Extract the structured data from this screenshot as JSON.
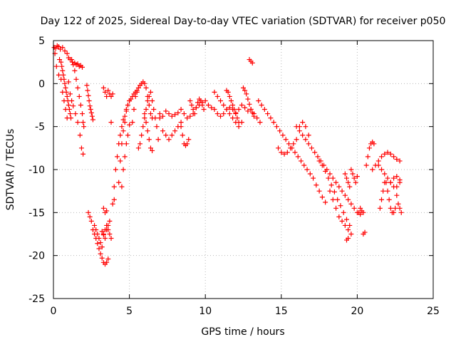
{
  "chart_data": {
    "type": "scatter",
    "title": "Day 122 of 2025, Sidereal Day-to-day VTEC variation (SDTVAR) for receiver p050",
    "xlabel": "GPS time / hours",
    "ylabel": "SDTVAR / TECUs",
    "xlim": [
      0,
      25
    ],
    "ylim": [
      -25,
      5
    ],
    "xticks": [
      "0",
      "5",
      "10",
      "15",
      "20",
      "25"
    ],
    "yticks": [
      "5",
      "0",
      "-5",
      "-10",
      "-15",
      "-20",
      "-25"
    ],
    "grid": true,
    "marker": "+",
    "series": [
      {
        "name": "SDTVAR",
        "color": "#ff0000",
        "x": [
          0.05,
          0.15,
          0.25,
          0.35,
          0.45,
          0.6,
          0.75,
          0.9,
          1.0,
          1.1,
          1.25,
          1.4,
          1.5,
          1.6,
          1.7,
          1.8,
          1.9,
          0.1,
          0.2,
          0.35,
          0.5,
          0.6,
          0.7,
          0.8,
          0.9,
          1.0,
          1.1,
          1.2,
          1.3,
          1.45,
          1.6,
          1.75,
          1.85,
          1.95,
          0.4,
          0.5,
          0.55,
          0.6,
          0.65,
          0.7,
          0.75,
          0.8,
          0.85,
          0.9,
          0.95,
          1.0,
          1.05,
          1.1,
          1.15,
          1.2,
          1.3,
          1.4,
          1.5,
          1.6,
          1.7,
          1.8,
          1.9,
          1.95,
          2.0,
          2.2,
          2.25,
          2.3,
          2.35,
          2.4,
          2.45,
          2.5,
          2.55,
          2.6,
          2.3,
          2.4,
          2.5,
          2.6,
          2.7,
          2.8,
          2.9,
          3.0,
          3.1,
          3.2,
          3.3,
          3.4,
          3.5,
          3.6,
          2.7,
          2.8,
          2.9,
          3.0,
          3.1,
          3.2,
          3.3,
          3.4,
          3.5,
          3.6,
          3.7,
          3.8,
          3.3,
          3.4,
          3.5,
          3.6,
          3.7,
          3.8,
          3.9,
          3.9,
          4.0,
          4.1,
          4.2,
          4.3,
          4.4,
          4.5,
          4.6,
          4.7,
          4.8,
          4.9,
          5.0,
          4.3,
          4.4,
          4.5,
          4.6,
          4.7,
          4.8,
          4.9,
          5.0,
          5.1,
          5.2,
          5.3,
          5.4,
          5.5,
          3.2,
          3.3,
          3.4,
          3.5,
          3.6,
          3.7,
          3.3,
          3.4,
          3.5,
          3.8,
          4.0,
          4.5,
          4.6,
          4.7,
          4.8,
          4.9,
          5.0,
          5.2,
          5.3,
          5.4,
          5.5,
          5.6,
          5.7,
          5.8,
          5.9,
          6.0,
          6.1,
          6.2,
          6.3,
          6.4,
          6.5,
          5.6,
          5.7,
          5.8,
          5.9,
          6.0,
          6.1,
          6.2,
          6.3,
          6.4,
          6.5,
          6.6,
          6.7,
          6.8,
          6.9,
          7.0,
          6.0,
          6.1,
          6.2,
          6.3,
          6.4,
          6.5,
          7.0,
          7.2,
          7.4,
          7.6,
          7.8,
          8.0,
          8.2,
          8.4,
          8.6,
          8.8,
          9.0,
          9.2,
          9.4,
          9.6,
          9.8,
          10.0,
          10.2,
          10.4,
          10.6,
          10.8,
          11.0,
          11.2,
          11.4,
          11.6,
          11.8,
          12.0,
          12.2,
          12.4,
          12.6,
          12.8,
          13.0,
          13.2,
          13.4,
          13.6,
          7.2,
          7.4,
          7.6,
          7.8,
          8.0,
          8.2,
          8.4,
          8.4,
          8.5,
          8.6,
          8.7,
          8.8,
          8.9,
          9.0,
          9.1,
          9.2,
          9.3,
          9.4,
          9.5,
          9.6,
          9.7,
          9.8,
          9.9,
          10.6,
          10.8,
          11.0,
          11.2,
          11.4,
          11.6,
          11.8,
          12.0,
          12.2,
          12.4,
          11.4,
          11.5,
          11.6,
          11.7,
          11.8,
          11.9,
          12.0,
          12.1,
          12.2,
          12.5,
          12.6,
          12.7,
          12.8,
          12.9,
          13.0,
          13.1,
          13.2,
          12.9,
          13.0,
          13.1,
          13.5,
          13.7,
          13.9,
          14.1,
          14.3,
          14.5,
          14.7,
          14.9,
          15.1,
          15.3,
          15.5,
          15.7,
          15.9,
          16.1,
          16.3,
          16.5,
          16.7,
          16.9,
          17.1,
          17.3,
          17.5,
          17.7,
          17.9,
          14.8,
          15.0,
          15.2,
          15.4,
          15.6,
          15.8,
          16.0,
          16.2,
          16.4,
          16.6,
          16.8,
          16.0,
          16.2,
          16.4,
          16.6,
          16.8,
          17.0,
          17.2,
          17.4,
          17.6,
          17.8,
          18.0,
          18.2,
          18.4,
          18.6,
          18.8,
          19.0,
          19.2,
          19.4,
          19.6,
          19.8,
          20.0,
          20.2,
          17.5,
          17.7,
          17.9,
          18.1,
          18.3,
          18.5,
          18.7,
          18.9,
          19.1,
          19.3,
          19.5,
          18.2,
          18.4,
          18.6,
          18.8,
          19.0,
          19.2,
          19.4,
          19.6,
          19.2,
          19.3,
          19.4,
          19.5,
          19.6,
          19.7,
          19.8,
          19.9,
          20.0,
          20.1,
          20.2,
          20.3,
          20.4,
          20.4,
          20.5,
          19.3,
          19.4,
          20.6,
          20.7,
          20.8,
          20.9,
          21.0,
          21.1,
          21.0,
          21.2,
          21.4,
          21.6,
          21.8,
          22.0,
          22.2,
          22.4,
          22.6,
          22.8,
          21.4,
          21.6,
          21.8,
          22.0,
          22.2,
          22.4,
          22.6,
          22.8,
          21.9,
          22.0,
          22.1,
          22.2,
          22.3,
          22.4,
          22.5,
          22.6,
          22.7,
          22.8,
          22.9,
          21.5,
          21.6,
          21.7,
          21.8,
          22.2,
          22.4,
          22.6,
          22.8
        ],
        "y": [
          4.2,
          4.1,
          4.4,
          4.3,
          4.0,
          4.2,
          3.8,
          3.5,
          3.0,
          2.8,
          2.5,
          2.4,
          2.2,
          2.3,
          2.0,
          2.1,
          1.9,
          3.5,
          2.0,
          1.0,
          0.5,
          -1.0,
          -2.0,
          -3.0,
          -4.0,
          0.2,
          -1.2,
          -2.0,
          -2.6,
          -3.5,
          -4.5,
          -6.0,
          -7.5,
          -8.2,
          2.8,
          2.5,
          2.0,
          1.5,
          1.0,
          0.5,
          0.0,
          -0.5,
          -1.0,
          -1.5,
          -2.0,
          -2.5,
          -3.0,
          -3.5,
          -4.0,
          2.8,
          2.2,
          1.5,
          0.5,
          -0.5,
          -1.5,
          -2.5,
          -3.5,
          -4.5,
          -5.0,
          -0.2,
          -0.8,
          -1.4,
          -2.0,
          -2.6,
          -3.0,
          -3.4,
          -3.8,
          -4.2,
          -15.0,
          -15.5,
          -16.0,
          -17.0,
          -17.5,
          -18.0,
          -18.6,
          -19.2,
          -19.8,
          -20.3,
          -20.8,
          -21.0,
          -20.8,
          -20.4,
          -16.5,
          -17.0,
          -17.5,
          -18.0,
          -18.5,
          -19.0,
          -17.5,
          -17.0,
          -16.5,
          -17.0,
          -17.5,
          -18.0,
          -0.5,
          -1.0,
          -1.5,
          -0.8,
          -1.2,
          -1.5,
          -1.2,
          -14.0,
          -12.0,
          -10.0,
          -8.5,
          -7.0,
          -6.0,
          -5.0,
          -4.2,
          -3.8,
          -3.0,
          -2.5,
          -2.0,
          -11.5,
          -9.0,
          -7.0,
          -5.5,
          -4.5,
          -3.2,
          -2.5,
          -2.0,
          -1.8,
          -1.5,
          -1.2,
          -1.0,
          -0.8,
          -17.2,
          -17.6,
          -18.0,
          -17.0,
          -16.5,
          -16.0,
          -14.5,
          -15.0,
          -14.8,
          -4.5,
          -13.5,
          -12.0,
          -10.0,
          -8.5,
          -7.0,
          -6.0,
          -4.8,
          -4.5,
          -3.0,
          -1.5,
          -1.0,
          -0.5,
          -0.2,
          0.0,
          0.2,
          0.0,
          -0.5,
          -1.5,
          -2.5,
          -3.5,
          -4.0,
          -7.5,
          -7.0,
          -6.0,
          -5.0,
          -4.0,
          -3.0,
          -2.0,
          -1.5,
          -1.0,
          -2.0,
          -3.0,
          -4.0,
          -5.0,
          -6.5,
          -4.0,
          -3.5,
          -4.5,
          -5.5,
          -6.5,
          -7.5,
          -7.8,
          -3.5,
          -3.8,
          -3.2,
          -3.5,
          -3.8,
          -3.6,
          -3.4,
          -3.0,
          -3.5,
          -4.0,
          -3.8,
          -3.5,
          -2.8,
          -2.5,
          -2.2,
          -2.0,
          -2.5,
          -2.8,
          -3.0,
          -3.5,
          -3.8,
          -3.5,
          -3.0,
          -2.8,
          -3.0,
          -3.4,
          -3.0,
          -2.5,
          -2.8,
          -3.2,
          -3.0,
          -3.5,
          -4.0,
          -4.5,
          -5.5,
          -6.0,
          -6.5,
          -6.0,
          -5.5,
          -5.0,
          -4.5,
          -5.0,
          -6.0,
          -7.0,
          -7.2,
          -7.0,
          -6.5,
          -2.0,
          -2.5,
          -3.0,
          -3.5,
          -2.8,
          -2.2,
          -1.8,
          -2.0,
          -2.5,
          -3.0,
          -1.0,
          -1.5,
          -2.0,
          -2.5,
          -3.0,
          -3.5,
          -4.0,
          -4.5,
          -5.0,
          -4.5,
          -0.8,
          -1.0,
          -1.5,
          -2.0,
          -2.5,
          -3.0,
          -3.5,
          -4.0,
          -4.5,
          -0.5,
          -0.8,
          -1.2,
          -1.8,
          -2.4,
          -3.0,
          -3.4,
          -3.8,
          2.8,
          2.6,
          2.4,
          -2.0,
          -2.5,
          -3.0,
          -3.5,
          -4.0,
          -4.5,
          -5.0,
          -5.5,
          -6.0,
          -6.5,
          -7.0,
          -7.5,
          -8.0,
          -8.5,
          -9.0,
          -9.5,
          -10.0,
          -10.5,
          -11.0,
          -11.8,
          -12.5,
          -13.2,
          -13.8,
          -7.5,
          -8.0,
          -8.2,
          -8.0,
          -7.5,
          -7.0,
          -6.5,
          -5.0,
          -4.5,
          -5.0,
          -6.0,
          -5.0,
          -5.5,
          -6.0,
          -6.5,
          -7.0,
          -7.5,
          -8.0,
          -8.5,
          -9.0,
          -9.5,
          -10.0,
          -10.5,
          -11.0,
          -11.5,
          -12.0,
          -12.5,
          -13.0,
          -13.5,
          -14.0,
          -14.5,
          -15.0,
          -15.2,
          -9.0,
          -9.5,
          -10.2,
          -11.0,
          -11.8,
          -12.6,
          -13.5,
          -14.2,
          -15.0,
          -15.8,
          -16.5,
          -12.5,
          -13.5,
          -14.5,
          -15.5,
          -16.0,
          -16.5,
          -17.0,
          -17.5,
          -10.5,
          -11.0,
          -11.5,
          -12.0,
          -10.0,
          -10.5,
          -11.0,
          -11.5,
          -10.8,
          -15.0,
          -14.5,
          -14.8,
          -15.0,
          -17.5,
          -17.3,
          -18.2,
          -18.0,
          -9.5,
          -8.5,
          -7.5,
          -7.0,
          -6.8,
          -7.0,
          -10.0,
          -9.5,
          -9.0,
          -8.5,
          -8.2,
          -8.0,
          -8.2,
          -8.5,
          -8.8,
          -9.0,
          -9.5,
          -10.0,
          -10.5,
          -11.0,
          -11.5,
          -12.0,
          -12.0,
          -11.5,
          -11.5,
          -12.5,
          -13.5,
          -14.5,
          -15.0,
          -15.0,
          -14.5,
          -13.0,
          -14.0,
          -14.5,
          -15.0,
          -14.5,
          -13.5,
          -12.5,
          -11.5,
          -11.5,
          -11.0,
          -10.8,
          -11.2
        ]
      }
    ]
  }
}
